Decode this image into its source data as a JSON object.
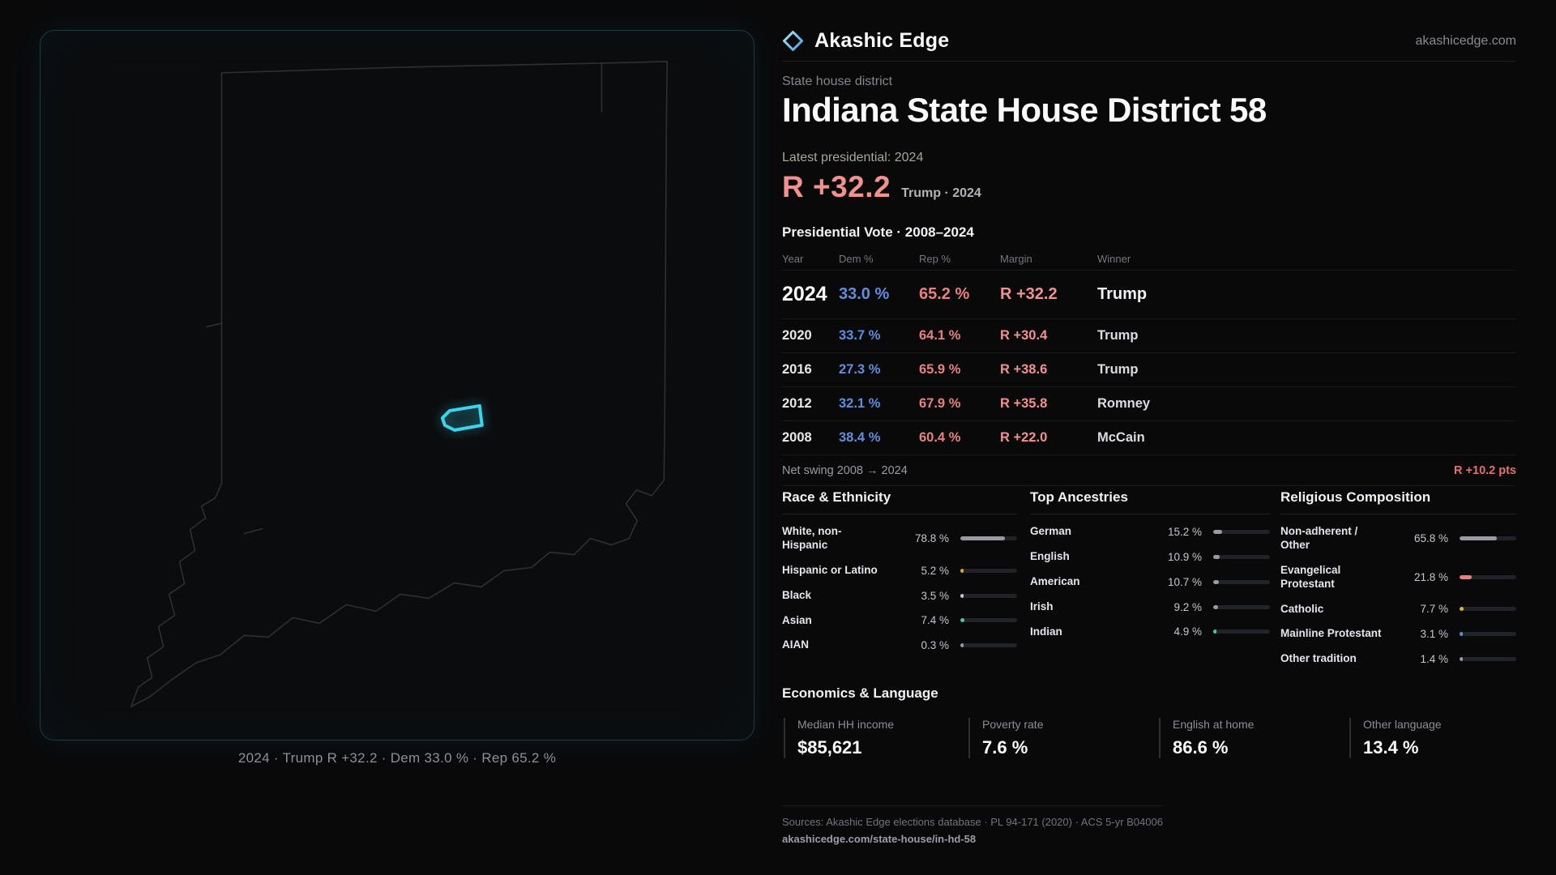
{
  "colors": {
    "dem": "#5e8ede",
    "rep": "#e8807f",
    "rep-bright": "#f2918e",
    "accent": "#3bd4ea",
    "bar-track": "#222327"
  },
  "header": {
    "brand": "Akashic Edge",
    "domain": "akashicedge.com"
  },
  "hero": {
    "kicker": "State house district",
    "title": "Indiana State House District 58",
    "latest_label": "Latest presidential: 2024",
    "margin_value": "R +32.2",
    "margin_context": "Trump · 2024"
  },
  "map": {
    "state": "Indiana",
    "caption": "2024 · Trump R +32.2 · Dem 33.0 % · Rep 65.2 %",
    "district_color": "#3bd4ea"
  },
  "vote_table": {
    "title": "Presidential Vote · 2008–2024",
    "columns": {
      "year": "Year",
      "dem": "Dem %",
      "rep": "Rep %",
      "margin": "Margin",
      "winner": "Winner"
    },
    "rows": [
      {
        "year": "2024",
        "dem": "33.0 %",
        "rep": "65.2 %",
        "margin": "R +32.2",
        "winner": "Trump"
      },
      {
        "year": "2020",
        "dem": "33.7 %",
        "rep": "64.1 %",
        "margin": "R +30.4",
        "winner": "Trump"
      },
      {
        "year": "2016",
        "dem": "27.3 %",
        "rep": "65.9 %",
        "margin": "R +38.6",
        "winner": "Trump"
      },
      {
        "year": "2012",
        "dem": "32.1 %",
        "rep": "67.9 %",
        "margin": "R +35.8",
        "winner": "Romney"
      },
      {
        "year": "2008",
        "dem": "38.4 %",
        "rep": "60.4 %",
        "margin": "R +22.0",
        "winner": "McCain"
      }
    ],
    "net_swing_label": "Net swing 2008 → 2024",
    "net_swing_value": "R +10.2 pts"
  },
  "demographics": {
    "race": {
      "title": "Race & Ethnicity",
      "rows": [
        {
          "label": "White, non-\nHispanic",
          "value": "78.8 %",
          "pct": 78.8,
          "color": "#9a9aa2"
        },
        {
          "label": "Hispanic or Latino",
          "value": "5.2 %",
          "pct": 5.2,
          "color": "#e0a43c"
        },
        {
          "label": "Black",
          "value": "3.5 %",
          "pct": 3.5,
          "color": "#c7c7cd"
        },
        {
          "label": "Asian",
          "value": "7.4 %",
          "pct": 7.4,
          "color": "#3ecfa8"
        },
        {
          "label": "AIAN",
          "value": "0.3 %",
          "pct": 0.3,
          "color": "#9a9aa2"
        }
      ]
    },
    "ancestries": {
      "title": "Top Ancestries",
      "rows": [
        {
          "label": "German",
          "value": "15.2 %",
          "pct": 15.2,
          "color": "#9a9aa2"
        },
        {
          "label": "English",
          "value": "10.9 %",
          "pct": 10.9,
          "color": "#9a9aa2"
        },
        {
          "label": "American",
          "value": "10.7 %",
          "pct": 10.7,
          "color": "#9a9aa2"
        },
        {
          "label": "Irish",
          "value": "9.2 %",
          "pct": 9.2,
          "color": "#9a9aa2"
        },
        {
          "label": "Indian",
          "value": "4.9 %",
          "pct": 4.9,
          "color": "#3ecfa8"
        }
      ]
    },
    "religion": {
      "title": "Religious Composition",
      "rows": [
        {
          "label": "Non-adherent /\nOther",
          "value": "65.8 %",
          "pct": 65.8,
          "color": "#9a9aa2"
        },
        {
          "label": "Evangelical\nProtestant",
          "value": "21.8 %",
          "pct": 21.8,
          "color": "#e8807f"
        },
        {
          "label": "Catholic",
          "value": "7.7 %",
          "pct": 7.7,
          "color": "#e0b43c"
        },
        {
          "label": "Mainline Protestant",
          "value": "3.1 %",
          "pct": 3.1,
          "color": "#5e8ede"
        },
        {
          "label": "Other tradition",
          "value": "1.4 %",
          "pct": 1.4,
          "color": "#9a9aa2"
        }
      ]
    }
  },
  "economics": {
    "title": "Economics & Language",
    "stats": [
      {
        "label": "Median HH income",
        "value": "$85,621"
      },
      {
        "label": "Poverty rate",
        "value": "7.6 %"
      },
      {
        "label": "English at home",
        "value": "86.6 %"
      },
      {
        "label": "Other language",
        "value": "13.4 %"
      }
    ]
  },
  "footer": {
    "sources": "Sources: Akashic Edge elections database · PL 94-171 (2020) · ACS 5-yr B04006",
    "permalink": "akashicedge.com/state-house/in-hd-58"
  }
}
